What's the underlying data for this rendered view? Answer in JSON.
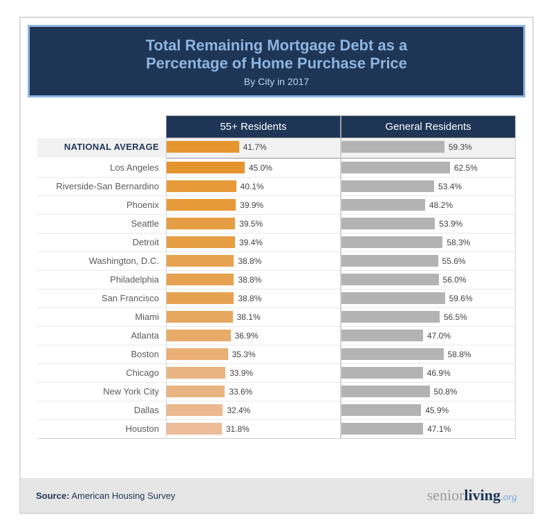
{
  "header": {
    "title_line1": "Total Remaining Mortgage Debt as a",
    "title_line2": "Percentage of Home Purchase Price",
    "subtitle": "By City in 2017",
    "bg_color": "#1e3556",
    "border_color": "#8eb4e0",
    "title_color": "#8eb4e0",
    "subtitle_color": "#bfd4ec",
    "title_fontsize": 22,
    "subtitle_fontsize": 14
  },
  "chart": {
    "type": "horizontal-bar-table",
    "columns": [
      {
        "label": "55+ Residents",
        "color_scheme": "orange"
      },
      {
        "label": "General Residents",
        "color_scheme": "gray"
      }
    ],
    "col_header_bg": "#1e3556",
    "col_header_text": "#ffffff",
    "col_max_value": 100,
    "general_bar_color": "#b3b3b3",
    "text_color": "#404040",
    "label_fontsize": 13,
    "value_fontsize": 12,
    "national": {
      "label": "NATIONAL AVERAGE",
      "senior": {
        "value": 41.7,
        "text": "41.7%",
        "color": "#e5952e"
      },
      "general": {
        "value": 59.3,
        "text": "59.3%"
      },
      "row_bg": "#f2f2f2"
    },
    "rows": [
      {
        "label": "Los Angeles",
        "senior": {
          "value": 45.0,
          "text": "45.0%",
          "color": "#e5952e"
        },
        "general": {
          "value": 62.5,
          "text": "62.5%"
        }
      },
      {
        "label": "Riverside-San Bernardino",
        "senior": {
          "value": 40.1,
          "text": "40.1%",
          "color": "#e69a3a"
        },
        "general": {
          "value": 53.4,
          "text": "53.4%"
        }
      },
      {
        "label": "Phoenix",
        "senior": {
          "value": 39.9,
          "text": "39.9%",
          "color": "#e69a3a"
        },
        "general": {
          "value": 48.2,
          "text": "48.2%"
        }
      },
      {
        "label": "Seattle",
        "senior": {
          "value": 39.5,
          "text": "39.5%",
          "color": "#e69e44"
        },
        "general": {
          "value": 53.9,
          "text": "53.9%"
        }
      },
      {
        "label": "Detroit",
        "senior": {
          "value": 39.4,
          "text": "39.4%",
          "color": "#e69e44"
        },
        "general": {
          "value": 58.3,
          "text": "58.3%"
        }
      },
      {
        "label": "Washington, D.C.",
        "senior": {
          "value": 38.8,
          "text": "38.8%",
          "color": "#e7a251"
        },
        "general": {
          "value": 55.6,
          "text": "55.6%"
        }
      },
      {
        "label": "Philadelphia",
        "senior": {
          "value": 38.8,
          "text": "38.8%",
          "color": "#e7a251"
        },
        "general": {
          "value": 56.0,
          "text": "56.0%"
        }
      },
      {
        "label": "San Francisco",
        "senior": {
          "value": 38.8,
          "text": "38.8%",
          "color": "#e7a251"
        },
        "general": {
          "value": 59.6,
          "text": "59.6%"
        }
      },
      {
        "label": "Miami",
        "senior": {
          "value": 38.1,
          "text": "38.1%",
          "color": "#e7a65d"
        },
        "general": {
          "value": 56.5,
          "text": "56.5%"
        }
      },
      {
        "label": "Atlanta",
        "senior": {
          "value": 36.9,
          "text": "36.9%",
          "color": "#e8ab69"
        },
        "general": {
          "value": 47.0,
          "text": "47.0%"
        }
      },
      {
        "label": "Boston",
        "senior": {
          "value": 35.3,
          "text": "35.3%",
          "color": "#e9af75"
        },
        "general": {
          "value": 58.8,
          "text": "58.8%"
        }
      },
      {
        "label": "Chicago",
        "senior": {
          "value": 33.9,
          "text": "33.9%",
          "color": "#eab482"
        },
        "general": {
          "value": 46.9,
          "text": "46.9%"
        }
      },
      {
        "label": "New York City",
        "senior": {
          "value": 33.6,
          "text": "33.6%",
          "color": "#eab482"
        },
        "general": {
          "value": 50.8,
          "text": "50.8%"
        }
      },
      {
        "label": "Dallas",
        "senior": {
          "value": 32.4,
          "text": "32.4%",
          "color": "#ebb88e"
        },
        "general": {
          "value": 45.9,
          "text": "45.9%"
        }
      },
      {
        "label": "Houston",
        "senior": {
          "value": 31.8,
          "text": "31.8%",
          "color": "#ecbc98"
        },
        "general": {
          "value": 47.1,
          "text": "47.1%"
        }
      }
    ]
  },
  "footer": {
    "source_prefix": "Source:",
    "source_text": "American Housing Survey",
    "logo_part1": "senior",
    "logo_part2": "living",
    "logo_part3": ".org",
    "bg_color": "#e6e6e6"
  }
}
